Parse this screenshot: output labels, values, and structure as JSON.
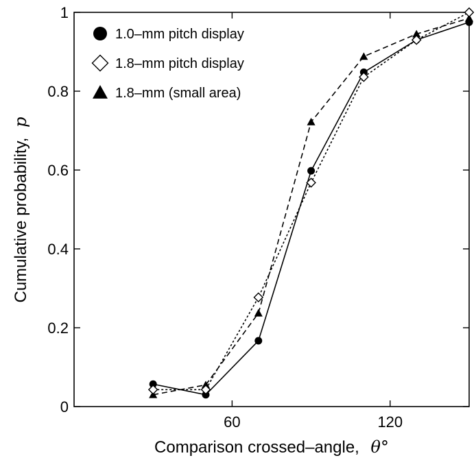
{
  "chart_data": {
    "type": "line",
    "xlabel_main": "Comparison crossed–angle,",
    "xlabel_symbol": "θ°",
    "ylabel_main": "Cumulative probability,",
    "ylabel_symbol": "p",
    "xlim": [
      0,
      150
    ],
    "ylim": [
      0,
      1
    ],
    "x_ticks": [
      60,
      120
    ],
    "x_tick_labels": [
      "60",
      "120"
    ],
    "y_ticks": [
      0,
      0.2,
      0.4,
      0.6,
      0.8,
      1
    ],
    "y_tick_labels": [
      "0",
      "0.2",
      "0.4",
      "0.6",
      "0.8",
      "1"
    ],
    "grid": false,
    "legend_position": "top-left",
    "series": [
      {
        "name": "1.0–mm pitch display",
        "marker": "circle",
        "line": "solid",
        "x": [
          30,
          50,
          70,
          90,
          110,
          130,
          150
        ],
        "y": [
          0.057,
          0.03,
          0.167,
          0.598,
          0.848,
          0.93,
          0.975
        ]
      },
      {
        "name": "1.8–mm pitch display",
        "marker": "diamond",
        "line": "dotted",
        "x": [
          30,
          50,
          70,
          90,
          110,
          130,
          150
        ],
        "y": [
          0.043,
          0.043,
          0.277,
          0.568,
          0.836,
          0.93,
          1.0
        ]
      },
      {
        "name": "1.8–mm (small area)",
        "marker": "triangle",
        "line": "dashed",
        "x": [
          30,
          50,
          70,
          90,
          110,
          130,
          150
        ],
        "y": [
          0.03,
          0.055,
          0.237,
          0.722,
          0.888,
          0.945,
          0.985
        ]
      }
    ]
  }
}
